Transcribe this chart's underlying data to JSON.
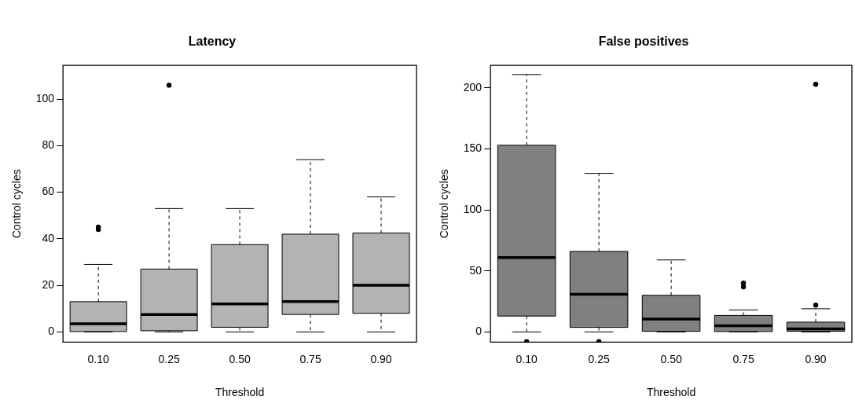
{
  "chart_data": [
    {
      "type": "box",
      "title": "Latency",
      "xlabel": "Threshold",
      "ylabel": "Control cycles",
      "categories": [
        "0.10",
        "0.25",
        "0.50",
        "0.75",
        "0.90"
      ],
      "color": "#b3b3b3",
      "boxes": [
        {
          "low": 0,
          "q1": 0,
          "median": 3.5,
          "q3": 13,
          "high": 29,
          "outliers": [
            44,
            45
          ]
        },
        {
          "low": 0,
          "q1": 0.5,
          "median": 7.5,
          "q3": 27,
          "high": 53,
          "outliers": [
            106
          ]
        },
        {
          "low": 0,
          "q1": 2,
          "median": 12,
          "q3": 37.5,
          "high": 53
        },
        {
          "low": 0,
          "q1": 7.5,
          "median": 13,
          "q3": 42,
          "high": 74
        },
        {
          "low": 0,
          "q1": 8,
          "median": 20,
          "q3": 42.5,
          "high": 58
        }
      ],
      "ylim": [
        -4.4,
        114.5
      ],
      "yticks": [
        0,
        20,
        40,
        60,
        80,
        100
      ],
      "grid": false
    },
    {
      "type": "box",
      "title": "False positives",
      "xlabel": "Threshold",
      "ylabel": "Control cycles",
      "categories": [
        "0.10",
        "0.25",
        "0.50",
        "0.75",
        "0.90"
      ],
      "color": "#808080",
      "boxes": [
        {
          "low": 0,
          "q1": 13,
          "median": 61,
          "q3": 153,
          "high": 211,
          "outliers": [
            -8
          ]
        },
        {
          "low": 0,
          "q1": 3.7,
          "median": 30.8,
          "q3": 66,
          "high": 130,
          "outliers": [
            -8
          ]
        },
        {
          "low": 0,
          "q1": 0.5,
          "median": 10.5,
          "q3": 30,
          "high": 59
        },
        {
          "low": 0,
          "q1": 0,
          "median": 5,
          "q3": 13.5,
          "high": 18,
          "outliers": [
            37,
            40
          ]
        },
        {
          "low": 0,
          "q1": 0.5,
          "median": 2.5,
          "q3": 8,
          "high": 19,
          "outliers": [
            22,
            203
          ]
        }
      ],
      "ylim": [
        -8.4,
        218.5
      ],
      "yticks": [
        0,
        50,
        100,
        150,
        200
      ],
      "grid": false
    }
  ]
}
